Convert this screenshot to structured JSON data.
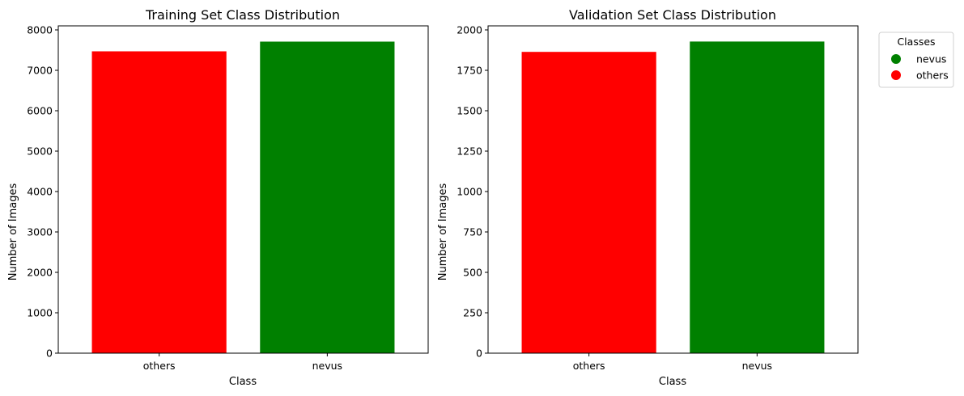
{
  "chart_data": [
    {
      "type": "bar",
      "title": "Training Set Class Distribution",
      "xlabel": "Class",
      "ylabel": "Number of Images",
      "categories": [
        "others",
        "nevus"
      ],
      "values": [
        7470,
        7710
      ],
      "colors": [
        "#ff0000",
        "#008000"
      ],
      "ylim": [
        0,
        8100
      ],
      "yticks": [
        0,
        1000,
        2000,
        3000,
        4000,
        5000,
        6000,
        7000,
        8000
      ],
      "grid": false
    },
    {
      "type": "bar",
      "title": "Validation Set Class Distribution",
      "xlabel": "Class",
      "ylabel": "Number of Images",
      "categories": [
        "others",
        "nevus"
      ],
      "values": [
        1864,
        1928
      ],
      "colors": [
        "#ff0000",
        "#008000"
      ],
      "ylim": [
        0,
        2025
      ],
      "yticks": [
        0,
        250,
        500,
        750,
        1000,
        1250,
        1500,
        1750,
        2000
      ],
      "grid": false
    }
  ],
  "legend": {
    "title": "Classes",
    "placement": "outside-top-right",
    "items": [
      {
        "label": "nevus",
        "color": "#008000"
      },
      {
        "label": "others",
        "color": "#ff0000"
      }
    ]
  }
}
